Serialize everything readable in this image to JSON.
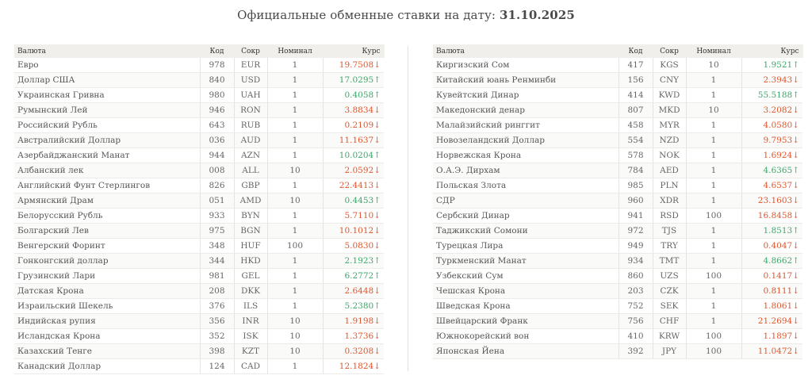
{
  "header": {
    "title": "Официальные обменные ставки на дату:",
    "date": "31.10.2025"
  },
  "columns": {
    "currency": "Валюта",
    "code": "Код",
    "abbr": "Сокр",
    "nominal": "Номинал",
    "rate": "Курс"
  },
  "colors": {
    "down": "#e2562c",
    "up": "#3da86a"
  },
  "left_rows": [
    {
      "name": "Евро",
      "code": "978",
      "abbr": "EUR",
      "nominal": "1",
      "rate": "19.7508",
      "dir": "down"
    },
    {
      "name": "Доллар США",
      "code": "840",
      "abbr": "USD",
      "nominal": "1",
      "rate": "17.0295",
      "dir": "up"
    },
    {
      "name": "Украинская Гривна",
      "code": "980",
      "abbr": "UAH",
      "nominal": "1",
      "rate": "0.4058",
      "dir": "up"
    },
    {
      "name": "Румынский Лей",
      "code": "946",
      "abbr": "RON",
      "nominal": "1",
      "rate": "3.8834",
      "dir": "down"
    },
    {
      "name": "Российский Рубль",
      "code": "643",
      "abbr": "RUB",
      "nominal": "1",
      "rate": "0.2109",
      "dir": "down"
    },
    {
      "name": "Австралийский Доллар",
      "code": "036",
      "abbr": "AUD",
      "nominal": "1",
      "rate": "11.1637",
      "dir": "down"
    },
    {
      "name": "Азербайджанский Манат",
      "code": "944",
      "abbr": "AZN",
      "nominal": "1",
      "rate": "10.0204",
      "dir": "up"
    },
    {
      "name": "Албанский лек",
      "code": "008",
      "abbr": "ALL",
      "nominal": "10",
      "rate": "2.0592",
      "dir": "down"
    },
    {
      "name": "Английский Фунт Стерлингов",
      "code": "826",
      "abbr": "GBP",
      "nominal": "1",
      "rate": "22.4413",
      "dir": "down"
    },
    {
      "name": "Армянский Драм",
      "code": "051",
      "abbr": "AMD",
      "nominal": "10",
      "rate": "0.4453",
      "dir": "up"
    },
    {
      "name": "Белорусский Рубль",
      "code": "933",
      "abbr": "BYN",
      "nominal": "1",
      "rate": "5.7110",
      "dir": "down"
    },
    {
      "name": "Болгарский Лев",
      "code": "975",
      "abbr": "BGN",
      "nominal": "1",
      "rate": "10.1012",
      "dir": "down"
    },
    {
      "name": "Венгерский Форинт",
      "code": "348",
      "abbr": "HUF",
      "nominal": "100",
      "rate": "5.0830",
      "dir": "down"
    },
    {
      "name": "Гонконгский доллар",
      "code": "344",
      "abbr": "HKD",
      "nominal": "1",
      "rate": "2.1923",
      "dir": "up"
    },
    {
      "name": "Грузинский Лари",
      "code": "981",
      "abbr": "GEL",
      "nominal": "1",
      "rate": "6.2772",
      "dir": "up"
    },
    {
      "name": "Датская Крона",
      "code": "208",
      "abbr": "DKK",
      "nominal": "1",
      "rate": "2.6448",
      "dir": "down"
    },
    {
      "name": "Израильский Шекель",
      "code": "376",
      "abbr": "ILS",
      "nominal": "1",
      "rate": "5.2380",
      "dir": "up"
    },
    {
      "name": "Индийская рупия",
      "code": "356",
      "abbr": "INR",
      "nominal": "10",
      "rate": "1.9198",
      "dir": "down"
    },
    {
      "name": "Исландская Крона",
      "code": "352",
      "abbr": "ISK",
      "nominal": "10",
      "rate": "1.3736",
      "dir": "down"
    },
    {
      "name": "Казахский Тенге",
      "code": "398",
      "abbr": "KZT",
      "nominal": "10",
      "rate": "0.3208",
      "dir": "down"
    },
    {
      "name": "Канадский Доллар",
      "code": "124",
      "abbr": "CAD",
      "nominal": "1",
      "rate": "12.1824",
      "dir": "down"
    }
  ],
  "right_rows": [
    {
      "name": "Киргизский Сом",
      "code": "417",
      "abbr": "KGS",
      "nominal": "10",
      "rate": "1.9521",
      "dir": "up"
    },
    {
      "name": "Китайский юань Ренминби",
      "code": "156",
      "abbr": "CNY",
      "nominal": "1",
      "rate": "2.3943",
      "dir": "down"
    },
    {
      "name": "Кувейтский Динар",
      "code": "414",
      "abbr": "KWD",
      "nominal": "1",
      "rate": "55.5188",
      "dir": "up"
    },
    {
      "name": "Македонский денар",
      "code": "807",
      "abbr": "MKD",
      "nominal": "10",
      "rate": "3.2082",
      "dir": "down"
    },
    {
      "name": "Малайзийский ринггит",
      "code": "458",
      "abbr": "MYR",
      "nominal": "1",
      "rate": "4.0580",
      "dir": "down"
    },
    {
      "name": "Новозеландский Доллар",
      "code": "554",
      "abbr": "NZD",
      "nominal": "1",
      "rate": "9.7953",
      "dir": "down"
    },
    {
      "name": "Норвежская Крона",
      "code": "578",
      "abbr": "NOK",
      "nominal": "1",
      "rate": "1.6924",
      "dir": "down"
    },
    {
      "name": "О.А.Э. Дирхам",
      "code": "784",
      "abbr": "AED",
      "nominal": "1",
      "rate": "4.6365",
      "dir": "up"
    },
    {
      "name": "Польская Злота",
      "code": "985",
      "abbr": "PLN",
      "nominal": "1",
      "rate": "4.6537",
      "dir": "down"
    },
    {
      "name": "СДР",
      "code": "960",
      "abbr": "XDR",
      "nominal": "1",
      "rate": "23.1603",
      "dir": "down"
    },
    {
      "name": "Сербский Динар",
      "code": "941",
      "abbr": "RSD",
      "nominal": "100",
      "rate": "16.8458",
      "dir": "down"
    },
    {
      "name": "Таджикский Сомони",
      "code": "972",
      "abbr": "TJS",
      "nominal": "1",
      "rate": "1.8513",
      "dir": "up"
    },
    {
      "name": "Турецкая Лира",
      "code": "949",
      "abbr": "TRY",
      "nominal": "1",
      "rate": "0.4047",
      "dir": "down"
    },
    {
      "name": "Туркменский Манат",
      "code": "934",
      "abbr": "TMT",
      "nominal": "1",
      "rate": "4.8662",
      "dir": "up"
    },
    {
      "name": "Узбекский Сум",
      "code": "860",
      "abbr": "UZS",
      "nominal": "100",
      "rate": "0.1417",
      "dir": "down"
    },
    {
      "name": "Чешская Крона",
      "code": "203",
      "abbr": "CZK",
      "nominal": "1",
      "rate": "0.8111",
      "dir": "down"
    },
    {
      "name": "Шведская Крона",
      "code": "752",
      "abbr": "SEK",
      "nominal": "1",
      "rate": "1.8061",
      "dir": "down"
    },
    {
      "name": "Швейцарский Франк",
      "code": "756",
      "abbr": "CHF",
      "nominal": "1",
      "rate": "21.2694",
      "dir": "down"
    },
    {
      "name": "Южнокорейский вон",
      "code": "410",
      "abbr": "KRW",
      "nominal": "100",
      "rate": "1.1897",
      "dir": "down"
    },
    {
      "name": "Японская Йена",
      "code": "392",
      "abbr": "JPY",
      "nominal": "100",
      "rate": "11.0472",
      "dir": "down"
    }
  ]
}
